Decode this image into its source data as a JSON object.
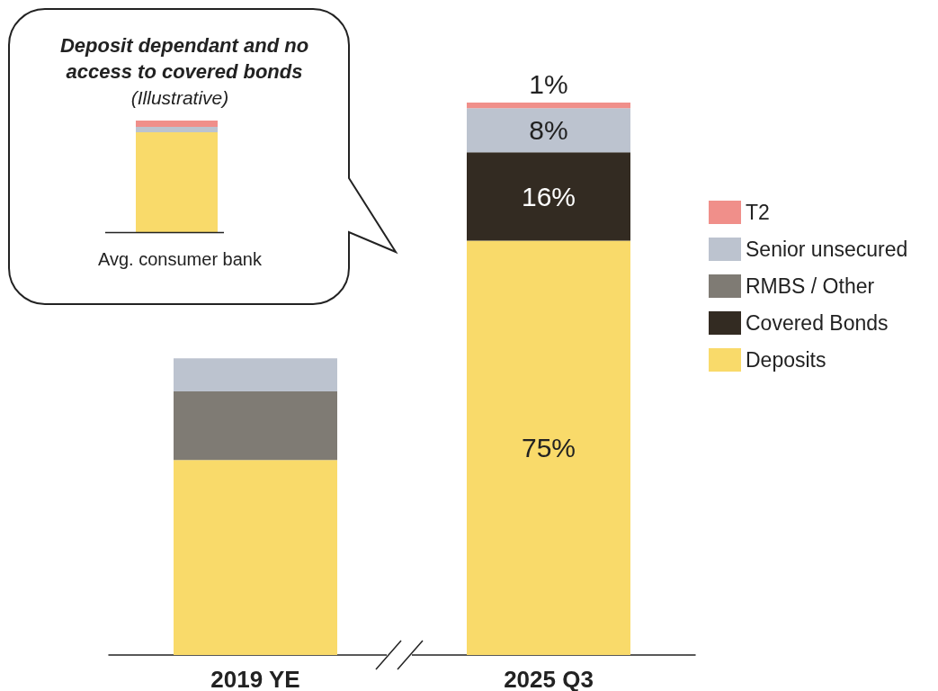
{
  "chart_data": {
    "type": "bar",
    "stacked": true,
    "legend": "right",
    "categories": [
      "2019 YE",
      "2025 Q3"
    ],
    "series": [
      {
        "name": "Deposits",
        "color": "#f9da6a",
        "values": [
          35.3,
          75
        ],
        "value_labels": [
          null,
          "75%"
        ]
      },
      {
        "name": "Covered Bonds",
        "color": "#332b22",
        "values": [
          0,
          16
        ],
        "value_labels": [
          null,
          "16%"
        ]
      },
      {
        "name": "RMBS / Other",
        "color": "#7f7b74",
        "values": [
          12.4,
          0
        ],
        "value_labels": [
          null,
          null
        ]
      },
      {
        "name": "Senior unsecured",
        "color": "#bcc3cf",
        "values": [
          6,
          8
        ],
        "value_labels": [
          null,
          "8%"
        ]
      },
      {
        "name": "T2",
        "color": "#f08f8a",
        "values": [
          0,
          1
        ],
        "value_labels": [
          null,
          "1%"
        ]
      }
    ],
    "annotations": [
      "Deposit dependant and no access to covered bonds",
      "(Illustrative)",
      "Avg. consumer bank"
    ]
  }
}
